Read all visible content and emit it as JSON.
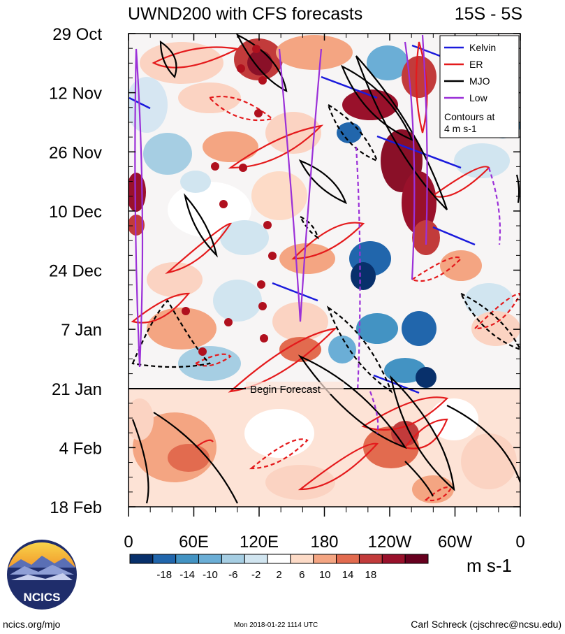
{
  "chart_data": {
    "type": "heatmap",
    "title": "UWND200 with CFS forecasts",
    "region": "15S - 5S",
    "ytick_labels": [
      "29 Oct",
      "12 Nov",
      "26 Nov",
      "10 Dec",
      "24 Dec",
      "7 Jan",
      "21 Jan",
      "4 Feb",
      "18 Feb"
    ],
    "xtick_labels": [
      "0",
      "60E",
      "120E",
      "180",
      "120W",
      "60W",
      "0"
    ],
    "x_values": [
      0,
      60,
      120,
      180,
      240,
      300,
      360
    ],
    "xlim": [
      0,
      360
    ],
    "ylabel": "",
    "xlabel": "",
    "forecast_label": "Begin Forecast",
    "forecast_date": "21 Jan",
    "legend": {
      "entries": [
        {
          "name": "Kelvin",
          "color": "#1a1adc"
        },
        {
          "name": "ER",
          "color": "#e41a1c"
        },
        {
          "name": "MJO",
          "color": "#000000"
        },
        {
          "name": "Low",
          "color": "#9b30d8"
        }
      ],
      "note_line1": "Contours at",
      "note_line2": "4 m s-1",
      "placement": "top-right"
    },
    "colorbar": {
      "labels": [
        "-18",
        "-14",
        "-10",
        "-6",
        "-2",
        "2",
        "6",
        "10",
        "14",
        "18"
      ],
      "colors": [
        "#08306b",
        "#2166ac",
        "#4393c3",
        "#6baed6",
        "#a6cee3",
        "#d1e5f0",
        "#ffffff",
        "#fddbc7",
        "#f4a582",
        "#e26b4f",
        "#c23b3b",
        "#99112b",
        "#67001f"
      ],
      "units": "m s-1"
    }
  },
  "logo": {
    "text": "NCICS"
  },
  "footer": {
    "left": "ncics.org/mjo",
    "center": "Mon 2018-01-22 1114 UTC",
    "right": "Carl Schreck (cjschrec@ncsu.edu)"
  }
}
